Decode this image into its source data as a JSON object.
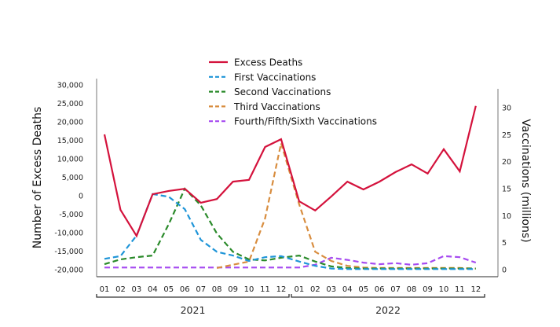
{
  "chart_data": {
    "type": "line",
    "title": "",
    "ylabel": "Number of Excess Deaths",
    "y2label": "Vaccinations (millions)",
    "xlabel": "",
    "ylim": [
      -20000,
      30000
    ],
    "y2lim": [
      0,
      30
    ],
    "yticks": [
      "30,000",
      "25,000",
      "20,000",
      "15,000",
      "10,000",
      "5,000",
      "0",
      "-5,000",
      "-10,000",
      "-15,000",
      "-20,000"
    ],
    "ytick_values": [
      30000,
      25000,
      20000,
      15000,
      10000,
      5000,
      0,
      -5000,
      -10000,
      -15000,
      -20000
    ],
    "y2ticks": [
      "30",
      "25",
      "20",
      "15",
      "10",
      "5",
      "0"
    ],
    "y2tick_values": [
      30,
      25,
      20,
      15,
      10,
      5,
      0
    ],
    "months": [
      "01",
      "02",
      "03",
      "04",
      "05",
      "06",
      "07",
      "08",
      "09",
      "10",
      "11",
      "12",
      "01",
      "02",
      "03",
      "04",
      "05",
      "06",
      "07",
      "08",
      "09",
      "10",
      "11",
      "12"
    ],
    "years": [
      {
        "label": "2021"
      },
      {
        "label": "2022"
      }
    ],
    "legend_position": "top-center",
    "grid": false,
    "series": [
      {
        "name": "Excess Deaths",
        "axis": "left",
        "color": "#d4123c",
        "dashed": false,
        "values": [
          16600,
          -3800,
          -10900,
          400,
          1300,
          1900,
          -1900,
          -900,
          3800,
          4300,
          13200,
          15300,
          -1500,
          -4000,
          -200,
          3800,
          1700,
          3800,
          6400,
          8500,
          6000,
          12600,
          6600,
          24300
        ]
      },
      {
        "name": "First Vaccinations",
        "axis": "right",
        "color": "#1f95d8",
        "dashed": true,
        "values": [
          2.0,
          2.5,
          6.3,
          14.0,
          13.5,
          11.2,
          5.5,
          3.3,
          2.6,
          1.6,
          2.3,
          2.5,
          1.5,
          0.7,
          0.2,
          0.1,
          0.1,
          0.1,
          0.1,
          0.1,
          0.1,
          0.1,
          0.1,
          0.1
        ]
      },
      {
        "name": "Second Vaccinations",
        "axis": "right",
        "color": "#2a8a2a",
        "dashed": true,
        "values": [
          1.0,
          1.9,
          2.3,
          2.6,
          8.4,
          15.0,
          11.9,
          6.7,
          3.3,
          1.9,
          1.7,
          2.2,
          2.6,
          1.5,
          0.6,
          0.3,
          0.2,
          0.2,
          0.2,
          0.2,
          0.2,
          0.2,
          0.2,
          0.2
        ]
      },
      {
        "name": "Third Vaccinations",
        "axis": "right",
        "color": "#d88d3f",
        "dashed": true,
        "values": [
          null,
          null,
          null,
          null,
          null,
          null,
          null,
          0.3,
          0.9,
          1.5,
          9.5,
          23.4,
          12.1,
          3.3,
          1.6,
          0.7,
          0.4,
          0.3,
          0.3,
          0.3,
          0.3,
          0.3,
          0.3,
          0.2
        ]
      },
      {
        "name": "Fourth/Fifth/Sixth Vaccinations",
        "axis": "right",
        "color": "#a64bf0",
        "dashed": true,
        "values": [
          0.4,
          0.4,
          0.4,
          0.4,
          0.4,
          0.4,
          0.4,
          0.4,
          0.4,
          0.4,
          0.4,
          0.4,
          0.4,
          0.9,
          2.2,
          1.8,
          1.3,
          1.0,
          1.2,
          0.9,
          1.2,
          2.5,
          2.3,
          1.3
        ]
      }
    ]
  }
}
